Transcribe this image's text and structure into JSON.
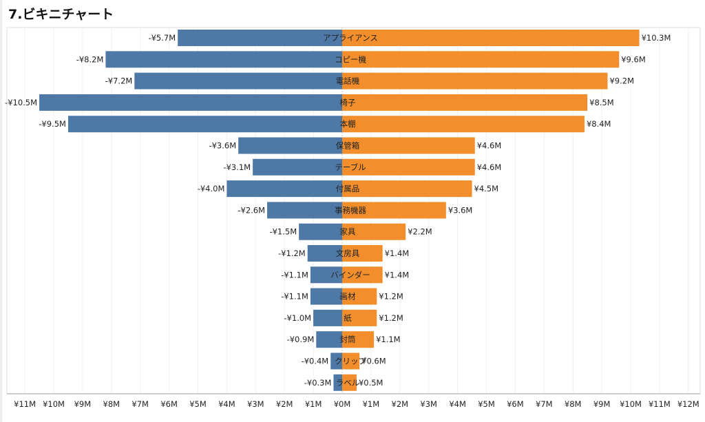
{
  "title": "7.ビキニチャート",
  "chart_data": {
    "type": "bar",
    "orientation": "horizontal-diverging",
    "title": "7.ビキニチャート",
    "categories": [
      "アプライアンス",
      "コピー機",
      "電話機",
      "椅子",
      "本棚",
      "保管箱",
      "テーブル",
      "付属品",
      "事務機器",
      "家具",
      "文房具",
      "バインダー",
      "画材",
      "紙",
      "封筒",
      "クリップ",
      "ラベル"
    ],
    "series": [
      {
        "values": [
          -5.7,
          -8.2,
          -7.2,
          -10.5,
          -9.5,
          -3.6,
          -3.1,
          -4.0,
          -2.6,
          -1.5,
          -1.2,
          -1.1,
          -1.1,
          -1.0,
          -0.9,
          -0.4,
          -0.3
        ],
        "labels": [
          "-¥5.7M",
          "-¥8.2M",
          "-¥7.2M",
          "-¥10.5M",
          "-¥9.5M",
          "-¥3.6M",
          "-¥3.1M",
          "-¥4.0M",
          "-¥2.6M",
          "-¥1.5M",
          "-¥1.2M",
          "-¥1.1M",
          "-¥1.1M",
          "-¥1.0M",
          "-¥0.9M",
          "-¥0.4M",
          "-¥0.3M"
        ],
        "color": "#4e79a7"
      },
      {
        "values": [
          10.3,
          9.6,
          9.2,
          8.5,
          8.4,
          4.6,
          4.6,
          4.5,
          3.6,
          2.2,
          1.4,
          1.4,
          1.2,
          1.2,
          1.1,
          0.6,
          0.5
        ],
        "labels": [
          "¥10.3M",
          "¥9.6M",
          "¥9.2M",
          "¥8.5M",
          "¥8.4M",
          "¥4.6M",
          "¥4.6M",
          "¥4.5M",
          "¥3.6M",
          "¥2.2M",
          "¥1.4M",
          "¥1.4M",
          "¥1.2M",
          "¥1.2M",
          "¥1.1M",
          "¥0.6M",
          "¥0.5M"
        ],
        "color": "#f28e2b"
      }
    ],
    "xlim": [
      -11,
      12
    ],
    "unit": "¥M",
    "tick_values": [
      -11,
      -10,
      -9,
      -8,
      -7,
      -6,
      -5,
      -4,
      -3,
      -2,
      -1,
      0,
      1,
      2,
      3,
      4,
      5,
      6,
      7,
      8,
      9,
      10,
      11,
      12
    ],
    "tick_labels": [
      "¥11M",
      "¥10M",
      "¥9M",
      "¥8M",
      "¥7M",
      "¥6M",
      "¥5M",
      "¥4M",
      "¥3M",
      "¥2M",
      "¥1M",
      "¥0M",
      "¥1M",
      "¥2M",
      "¥3M",
      "¥4M",
      "¥5M",
      "¥6M",
      "¥7M",
      "¥8M",
      "¥9M",
      "¥10M",
      "¥11M",
      "¥12M"
    ],
    "grid": true
  }
}
